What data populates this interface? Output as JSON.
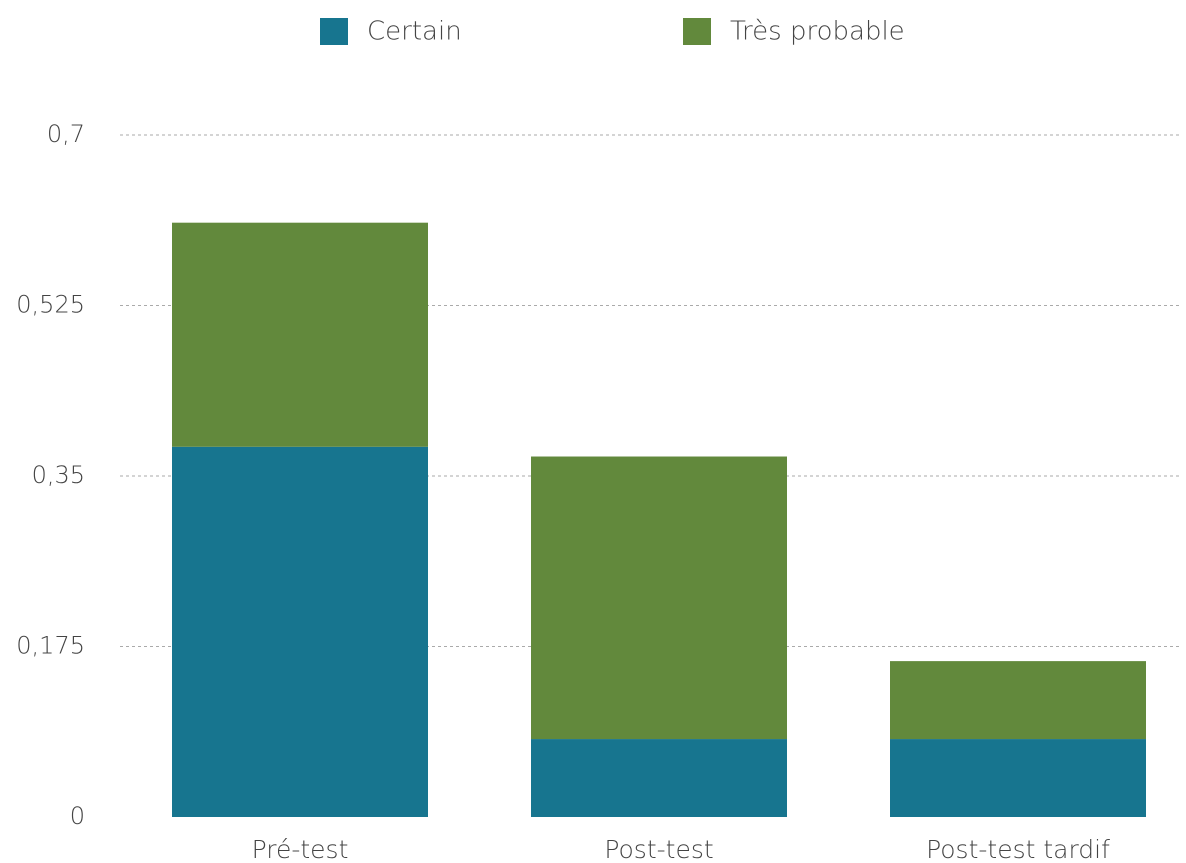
{
  "chart_data": {
    "type": "stacked_bar",
    "categories": [
      "Pré-test",
      "Post-test",
      "Post-test tardif"
    ],
    "series": [
      {
        "name": "Certain",
        "color": "#17758f",
        "values": [
          0.38,
          0.08,
          0.08
        ]
      },
      {
        "name": "Très probable",
        "color": "#62893c",
        "values": [
          0.23,
          0.29,
          0.08
        ]
      }
    ],
    "ylim": [
      0,
      0.7
    ],
    "yticks": [
      0,
      {
        "value": 0.175,
        "label": "0,175"
      },
      {
        "value": 0.35,
        "label": "0,35"
      },
      {
        "value": 0.525,
        "label": "0,525"
      },
      {
        "value": 0.7,
        "label": "0,7"
      }
    ],
    "grid": true,
    "legend": "top"
  }
}
